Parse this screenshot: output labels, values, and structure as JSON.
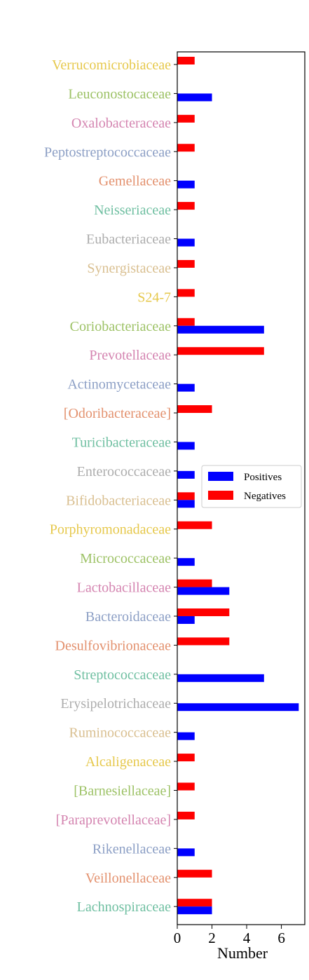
{
  "chart_data": {
    "type": "bar",
    "orientation": "horizontal",
    "categories": [
      "Verrucomicrobiaceae",
      "Leuconostocaceae",
      "Oxalobacteraceae",
      "Peptostreptococcaceae",
      "Gemellaceae",
      "Neisseriaceae",
      "Eubacteriaceae",
      "Synergistaceae",
      "S24-7",
      "Coriobacteriaceae",
      "Prevotellaceae",
      "Actinomycetaceae",
      "[Odoribacteraceae]",
      "Turicibacteraceae",
      "Enterococcaceae",
      "Bifidobacteriaceae",
      "Porphyromonadaceae",
      "Micrococcaceae",
      "Lactobacillaceae",
      "Bacteroidaceae",
      "Desulfovibrionaceae",
      "Streptococcaceae",
      "Erysipelotrichaceae",
      "Ruminococcaceae",
      "Alcaligenaceae",
      "[Barnesiellaceae]",
      "[Paraprevotellaceae]",
      "Rikenellaceae",
      "Veillonellaceae",
      "Lachnospiraceae"
    ],
    "label_colors": [
      "#e6c84b",
      "#9dc266",
      "#d484b0",
      "#8c9fc5",
      "#e3916e",
      "#6fbfa1",
      "#adadad",
      "#d9bf90",
      "#e6c84b",
      "#9dc266",
      "#d484b0",
      "#8c9fc5",
      "#e3916e",
      "#6fbfa1",
      "#adadad",
      "#d9bf90",
      "#e6c84b",
      "#9dc266",
      "#d484b0",
      "#8c9fc5",
      "#e3916e",
      "#6fbfa1",
      "#adadad",
      "#d9bf90",
      "#e6c84b",
      "#9dc266",
      "#d484b0",
      "#8c9fc5",
      "#e3916e",
      "#6fbfa1"
    ],
    "series": [
      {
        "name": "Positives",
        "color": "#0000ff",
        "values": [
          0,
          2,
          0,
          0,
          1,
          0,
          1,
          0,
          0,
          5,
          0,
          1,
          0,
          1,
          1,
          1,
          0,
          1,
          3,
          1,
          0,
          5,
          7,
          1,
          0,
          0,
          0,
          1,
          0,
          2
        ]
      },
      {
        "name": "Negatives",
        "color": "#ff0000",
        "values": [
          1,
          0,
          1,
          1,
          0,
          1,
          0,
          1,
          1,
          1,
          5,
          0,
          2,
          0,
          0,
          1,
          2,
          0,
          2,
          3,
          3,
          0,
          0,
          0,
          1,
          1,
          1,
          0,
          2,
          2
        ]
      }
    ],
    "xlabel": "Number",
    "ylabel": "",
    "xlim": [
      0,
      7.35
    ],
    "xticks": [
      "0",
      "2",
      "4",
      "6"
    ],
    "xtick_values": [
      0,
      2,
      4,
      6
    ],
    "legend_position": "center-right",
    "grid": false
  }
}
